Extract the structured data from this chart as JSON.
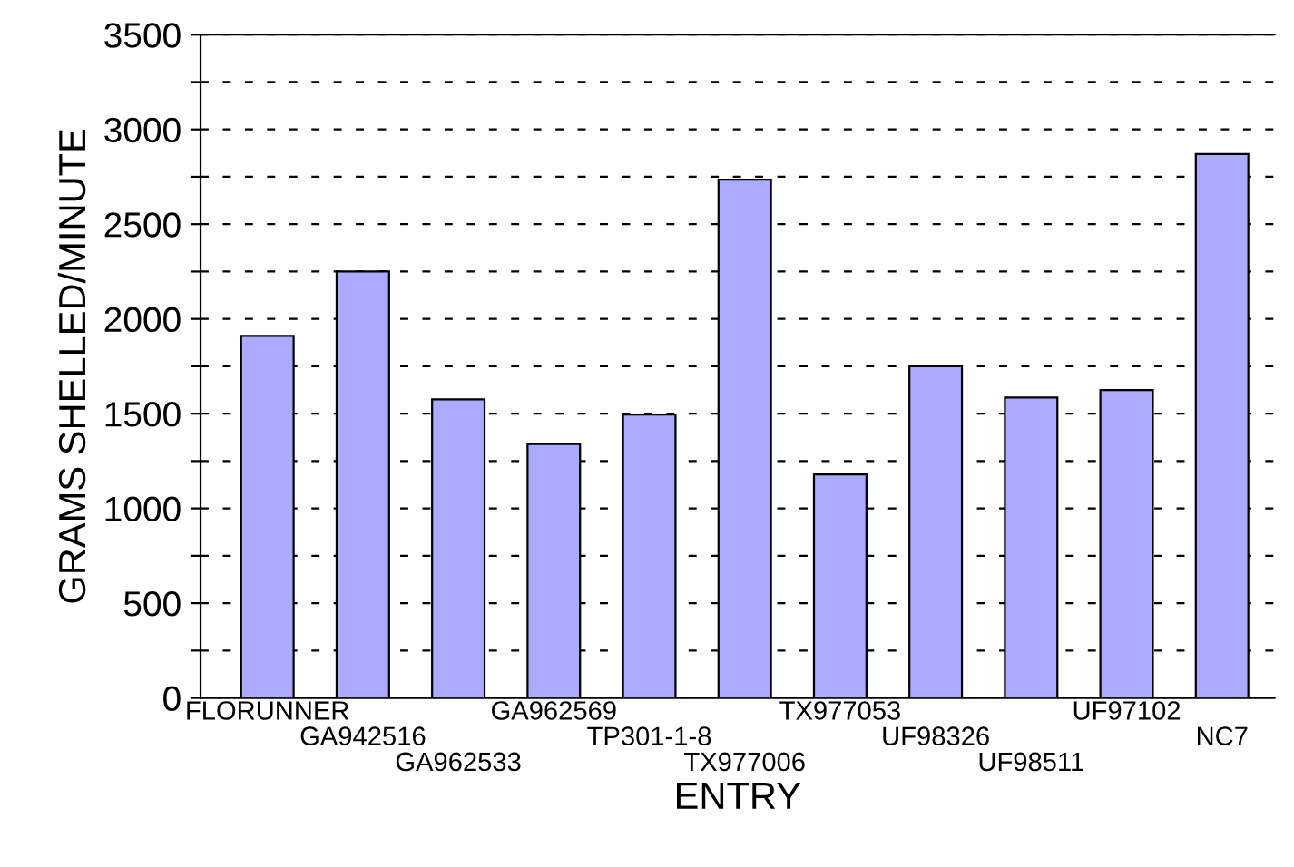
{
  "chart_data": {
    "type": "bar",
    "xlabel": "ENTRY",
    "ylabel": "GRAMS SHELLED/MINUTE",
    "categories": [
      "FLORUNNER",
      "GA942516",
      "GA962533",
      "GA962569",
      "TP301-1-8",
      "TX977006",
      "TX977053",
      "UF98326",
      "UF98511",
      "UF97102",
      "NC7"
    ],
    "values": [
      1910,
      2250,
      1575,
      1340,
      1495,
      2735,
      1180,
      1750,
      1585,
      1625,
      2870
    ],
    "color": "#aaaaff",
    "ylim": [
      0,
      3500
    ],
    "yticks": [
      0,
      {
        "value": 250,
        "label": null
      },
      500,
      {
        "value": 750,
        "label": null
      },
      1000,
      {
        "value": 1250,
        "label": null
      },
      1500,
      {
        "value": 1750,
        "label": null
      },
      2000,
      {
        "value": 2250,
        "label": null
      },
      2500,
      {
        "value": 2750,
        "label": null
      },
      3000,
      {
        "value": 3250,
        "label": null
      },
      3500
    ],
    "grid": "y",
    "line_style": "dashed"
  }
}
